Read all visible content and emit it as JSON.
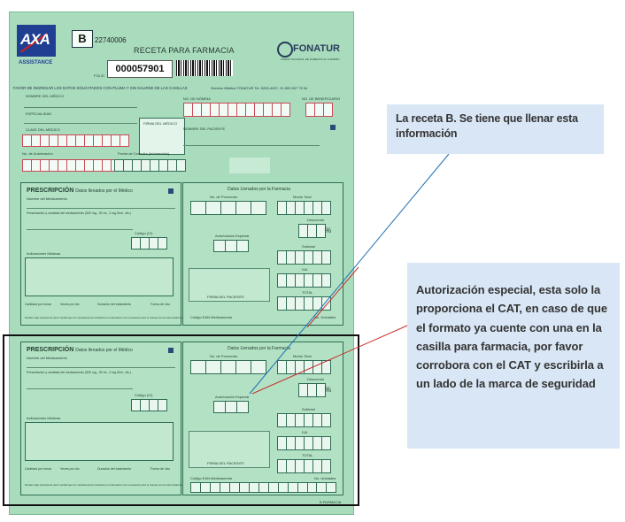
{
  "form": {
    "logo": "AXA",
    "logo_sub": "ASSISTANCE",
    "series_letter": "B",
    "series_number": "22740006",
    "title": "RECETA PARA FARMACIA",
    "folio_label": "FOLIO",
    "folio_number": "000057901",
    "fonatur_name": "FONATUR",
    "fonatur_sub": "FONDO NACIONAL DE FOMENTO AL TURISMO",
    "instructions": "FAVOR DE INGRESAR LOS DATOS SOLICITADOS CON PLUMA Y SIN SALIRSE DE LAS CASILLAS",
    "service_info": "Servicio Médico FONATUR Tel. 5263-4007, 01 800 637 75 94",
    "header": {
      "medico_name": "NOMBRE DEL MÉDICO",
      "especialidad": "ESPECIALIDAD",
      "clave_medico": "CLAVE DEL MÉDICO",
      "firma_medico": "FIRMA DEL MÉDICO",
      "no_nomina": "NO. DE NÓMINA",
      "no_beneficiario": "NO. DE BENEFICIARIO",
      "nombre_paciente": "NOMBRE DEL PACIENTE",
      "no_autorizacion": "No. de Autorización",
      "fecha_consulta": "Fecha de Consulta (dd/mes/año)"
    },
    "prescription": {
      "title": "PRESCRIPCIÓN",
      "title_sub": "Datos llenados por el Médico",
      "nombre_medicamento": "Nombre del Medicamento",
      "presentacion": "Presentación y cantidad del medicamento (500 mg., 30 ml., 2 mg./5ml., etc.)",
      "codigo": "Código (CI)",
      "indicaciones": "Indicaciones Médicas",
      "cantidad": "Cantidad por tomar",
      "veces": "Veces por día",
      "duracion": "Duración del tratamiento",
      "forma": "Forma de Uso",
      "declaro": "Declaro bajo protesta de decir verdad que los medicamentos indicados a continuación son necesarios para el manejo de la enfermedad del paciente"
    },
    "pharmacy": {
      "title": "Datos Llenados por la Farmacia",
      "no_proveedor": "No. de Proveedor",
      "monto_total": "Monto Total",
      "descuento": "Descuento",
      "percent": "%",
      "autorizacion_especial": "Autorización Especial",
      "subtotal": "Subtotal",
      "iva": "IVA",
      "total": "TOTAL",
      "firma_paciente": "FIRMA DEL PACIENTE",
      "codigo_ean": "Código EAN Medicamento",
      "no_unidades": "No. Unidades"
    },
    "footer_copy": "B PARMACIA"
  },
  "callouts": {
    "top": "La receta B. Se tiene que llenar esta información",
    "side": "Autorización especial, esta solo la proporciona el CAT, en caso de que el formato ya cuente con una en la casilla para farmacia, por favor corrobora con el CAT y escribirla a un lado de la marca de seguridad"
  },
  "colors": {
    "form_bg": "#a9dcbd",
    "callout_bg": "#d9e6f5",
    "callout_line": "#1f6fb4",
    "red_line": "#c8302f",
    "highlight_frame": "#111111"
  }
}
